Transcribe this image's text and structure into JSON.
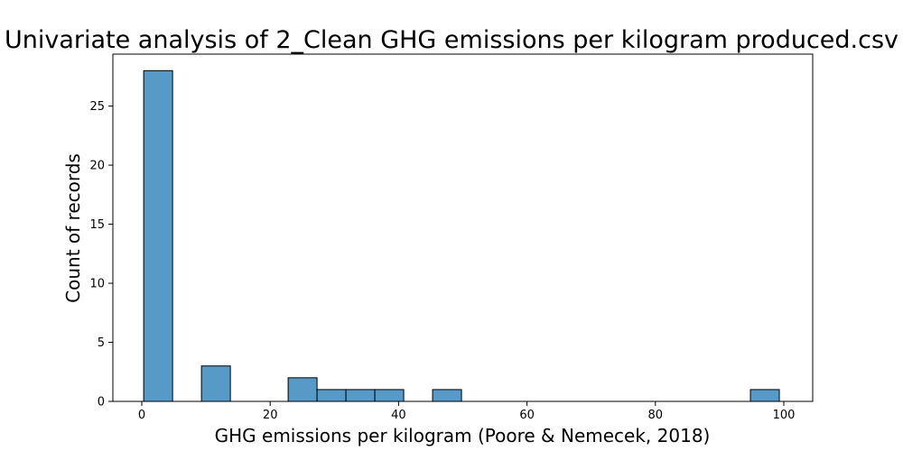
{
  "chart_data": {
    "type": "bar",
    "title": "Univariate analysis of 2_Clean GHG emissions per kilogram produced.csv",
    "xlabel": "GHG emissions per kilogram (Poore & Nemecek, 2018)",
    "ylabel": "Count of records",
    "xlim": [
      -4.5,
      104.5
    ],
    "ylim": [
      0,
      29.4
    ],
    "xticks": [
      0,
      20,
      40,
      60,
      80,
      100
    ],
    "yticks": [
      0,
      5,
      10,
      15,
      20,
      25
    ],
    "bin_edges": [
      0.3,
      4.8,
      9.3,
      13.8,
      18.3,
      22.8,
      27.3,
      31.8,
      36.3,
      40.8,
      45.3,
      49.8,
      54.3,
      58.8,
      63.3,
      67.8,
      72.3,
      76.8,
      81.3,
      85.8,
      90.3,
      94.8,
      99.3
    ],
    "values": [
      28,
      0,
      3,
      0,
      0,
      2,
      1,
      1,
      1,
      0,
      1,
      0,
      0,
      0,
      0,
      0,
      0,
      0,
      0,
      0,
      0,
      1
    ],
    "bar_color": "#5799c7",
    "edge_color": "#000000",
    "grid": false,
    "legend": "none"
  }
}
